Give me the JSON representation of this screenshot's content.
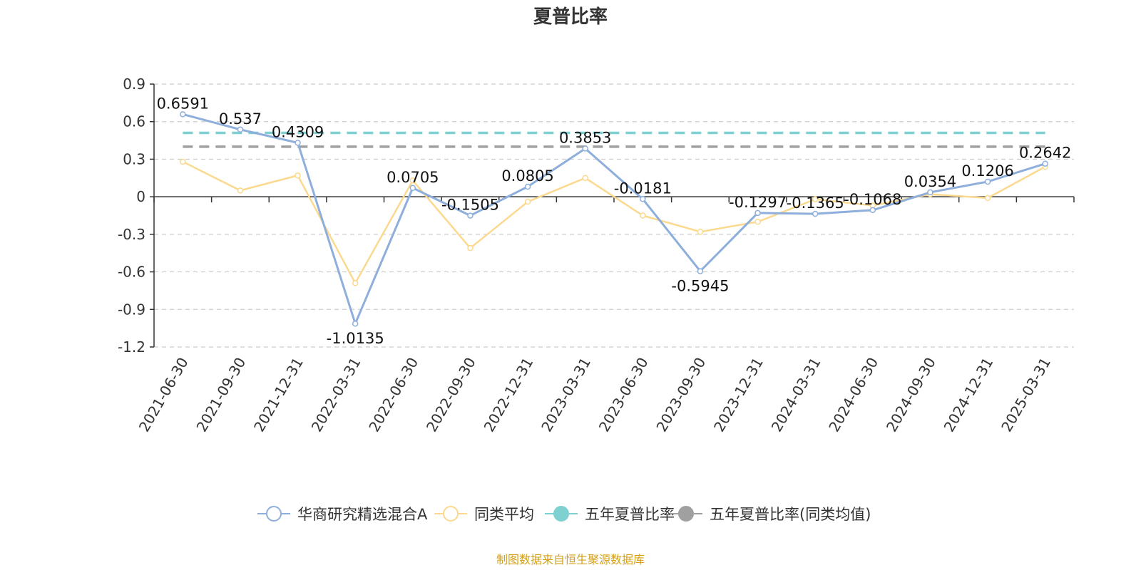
{
  "chart_data": {
    "type": "line",
    "title": "夏普比率",
    "xlabel": "",
    "ylabel": "",
    "ylim": [
      -1.2,
      0.9
    ],
    "yticks": [
      "0.9",
      "0.6",
      "0.3",
      "0",
      "-0.3",
      "-0.6",
      "-0.9",
      "-1.2"
    ],
    "ytick_values": [
      0.9,
      0.6,
      0.3,
      0,
      -0.3,
      -0.6,
      -0.9,
      -1.2
    ],
    "categories": [
      "2021-06-30",
      "2021-09-30",
      "2021-12-31",
      "2022-03-31",
      "2022-06-30",
      "2022-09-30",
      "2022-12-31",
      "2023-03-31",
      "2023-06-30",
      "2023-09-30",
      "2023-12-31",
      "2024-03-31",
      "2024-06-30",
      "2024-09-30",
      "2024-12-31",
      "2025-03-31"
    ],
    "grid": true,
    "legend_position": "bottom-center",
    "series": [
      {
        "name": "华商研究精选混合A",
        "color": "#8eaedb",
        "values": [
          0.6591,
          0.537,
          0.4309,
          -1.0135,
          0.0705,
          -0.1505,
          0.0805,
          0.3853,
          -0.0181,
          -0.5945,
          -0.1297,
          -0.1365,
          -0.1068,
          0.0354,
          0.1206,
          0.2642
        ],
        "labels": [
          "0.6591",
          "0.537",
          "0.4309",
          "-1.0135",
          "0.0705",
          "-0.1505",
          "0.0805",
          "0.3853",
          "-0.0181",
          "-0.5945",
          "-0.1297",
          "-0.1365",
          "-0.1068",
          "0.0354",
          "0.1206",
          "0.2642"
        ]
      },
      {
        "name": "同类平均",
        "color": "#fbd98f",
        "values": [
          0.28,
          0.05,
          0.17,
          -0.69,
          0.13,
          -0.41,
          -0.04,
          0.15,
          -0.15,
          -0.28,
          -0.2,
          -0.02,
          -0.07,
          0.02,
          -0.01,
          0.24
        ]
      },
      {
        "name": "五年夏普比率",
        "color": "#7fd0d0",
        "value": 0.51
      },
      {
        "name": "五年夏普比率(同类均值)",
        "color": "#a0a0a0",
        "value": 0.4
      }
    ],
    "source": "制图数据来自恒生聚源数据库"
  }
}
